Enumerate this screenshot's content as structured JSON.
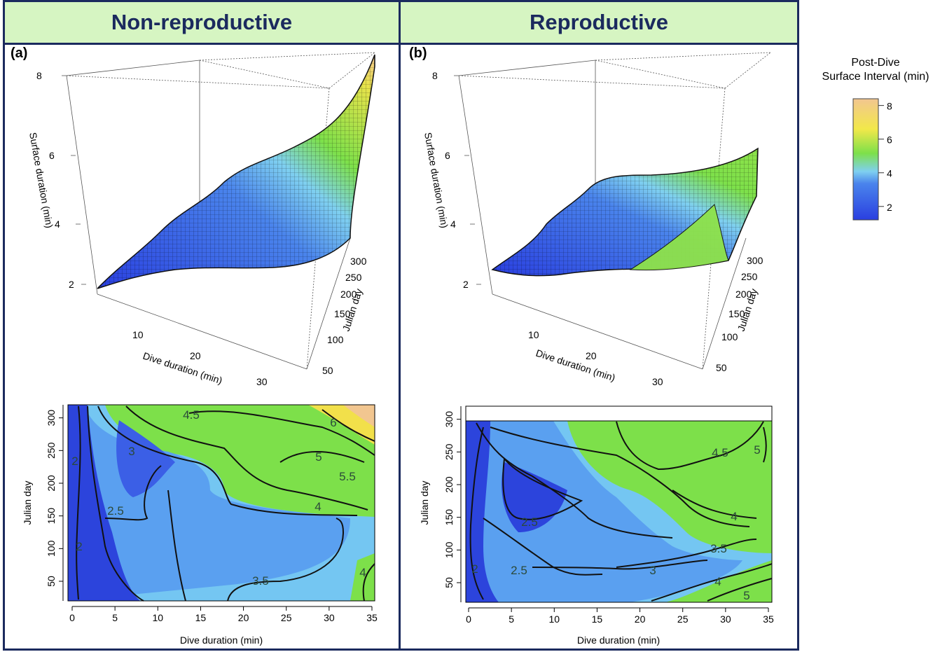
{
  "panels": [
    {
      "title": "Non-reproductive",
      "tag": "(a)"
    },
    {
      "title": "Reproductive",
      "tag": "(b)"
    }
  ],
  "legend": {
    "title_line1": "Post-Dive",
    "title_line2": "Surface Interval (min)",
    "ticks": [
      "2",
      "4",
      "6",
      "8"
    ],
    "colors": [
      "#2a3fe0",
      "#6fb8f0",
      "#7de04a",
      "#f2e84a",
      "#f2c690"
    ]
  },
  "chart_data": [
    {
      "type": "surface",
      "panel": "Non-reproductive",
      "zlabel": "Surface duration (min)",
      "xlabel": "Dive duration (min)",
      "ylabel": "Julian day",
      "zticks": [
        "2",
        "4",
        "6",
        "8"
      ],
      "xticks": [
        "10",
        "20",
        "30"
      ],
      "yticks": [
        "50",
        "100",
        "150",
        "200",
        "250",
        "300"
      ],
      "zlim": [
        2,
        8
      ]
    },
    {
      "type": "heatmap",
      "panel": "Non-reproductive",
      "xlabel": "Dive duration (min)",
      "ylabel": "Julian day",
      "xticks": [
        "0",
        "5",
        "10",
        "15",
        "20",
        "25",
        "30",
        "35"
      ],
      "yticks": [
        "50",
        "100",
        "150",
        "200",
        "250",
        "300"
      ],
      "xlim": [
        0,
        35
      ],
      "ylim": [
        20,
        320
      ],
      "contour_labels": [
        "4.5",
        "3",
        "2",
        "2.5",
        "2",
        "6",
        "5",
        "5.5",
        "4",
        "3.5",
        "4"
      ]
    },
    {
      "type": "surface",
      "panel": "Reproductive",
      "zlabel": "Surface duration (min)",
      "xlabel": "Dive duration (min)",
      "ylabel": "Julian day",
      "zticks": [
        "2",
        "4",
        "6",
        "8"
      ],
      "xticks": [
        "10",
        "20",
        "30"
      ],
      "yticks": [
        "50",
        "100",
        "150",
        "200",
        "250",
        "300"
      ],
      "zlim": [
        2,
        8
      ]
    },
    {
      "type": "heatmap",
      "panel": "Reproductive",
      "xlabel": "Dive duration (min)",
      "ylabel": "Julian day",
      "xticks": [
        "0",
        "5",
        "10",
        "15",
        "20",
        "25",
        "30",
        "35"
      ],
      "yticks": [
        "50",
        "100",
        "150",
        "200",
        "250",
        "300"
      ],
      "xlim": [
        0,
        35
      ],
      "ylim": [
        20,
        320
      ],
      "contour_labels": [
        "4.5",
        "5",
        "2.5",
        "4",
        "3.5",
        "2",
        "2.5",
        "3",
        "4",
        "5"
      ]
    }
  ]
}
